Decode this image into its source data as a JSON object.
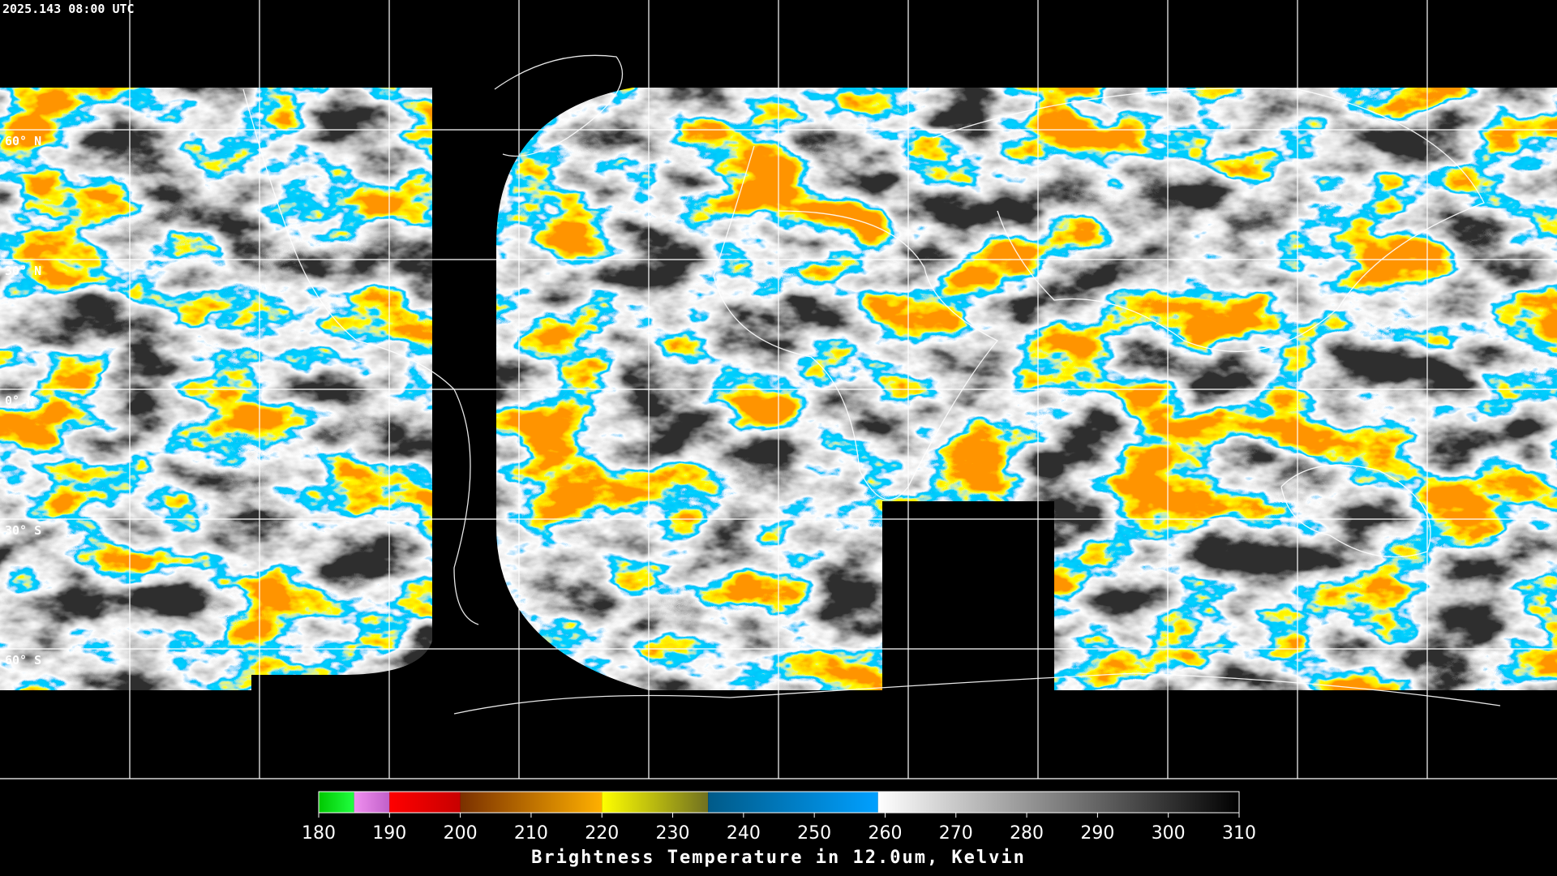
{
  "header": {
    "timestamp": "2025.143 08:00 UTC"
  },
  "map": {
    "lat_extent": [
      90,
      -90
    ],
    "latitudes": [
      {
        "value": 60,
        "label": "60° N"
      },
      {
        "value": 30,
        "label": "30° N"
      },
      {
        "value": 0,
        "label": "0° N"
      },
      {
        "value": -30,
        "label": "30° S"
      },
      {
        "value": -60,
        "label": "60° S"
      }
    ]
  },
  "colorbar": {
    "title": "Brightness Temperature in 12.0um, Kelvin",
    "range": [
      180,
      310
    ],
    "ticks": [
      180,
      190,
      200,
      210,
      220,
      230,
      240,
      250,
      260,
      270,
      280,
      290,
      300,
      310
    ],
    "segments": [
      {
        "from": 180,
        "to": 185,
        "colors": [
          "#00c800",
          "#20ff40"
        ]
      },
      {
        "from": 185,
        "to": 190,
        "colors": [
          "#f090f0",
          "#c060c8"
        ]
      },
      {
        "from": 190,
        "to": 200,
        "colors": [
          "#ff0000",
          "#c80000"
        ]
      },
      {
        "from": 200,
        "to": 220,
        "colors": [
          "#7a3000",
          "#ffb000"
        ]
      },
      {
        "from": 220,
        "to": 235,
        "colors": [
          "#ffff00",
          "#707020"
        ]
      },
      {
        "from": 235,
        "to": 259,
        "colors": [
          "#005a88",
          "#00a0ff"
        ]
      },
      {
        "from": 259,
        "to": 310,
        "colors": [
          "#ffffff",
          "#000000"
        ]
      }
    ]
  }
}
